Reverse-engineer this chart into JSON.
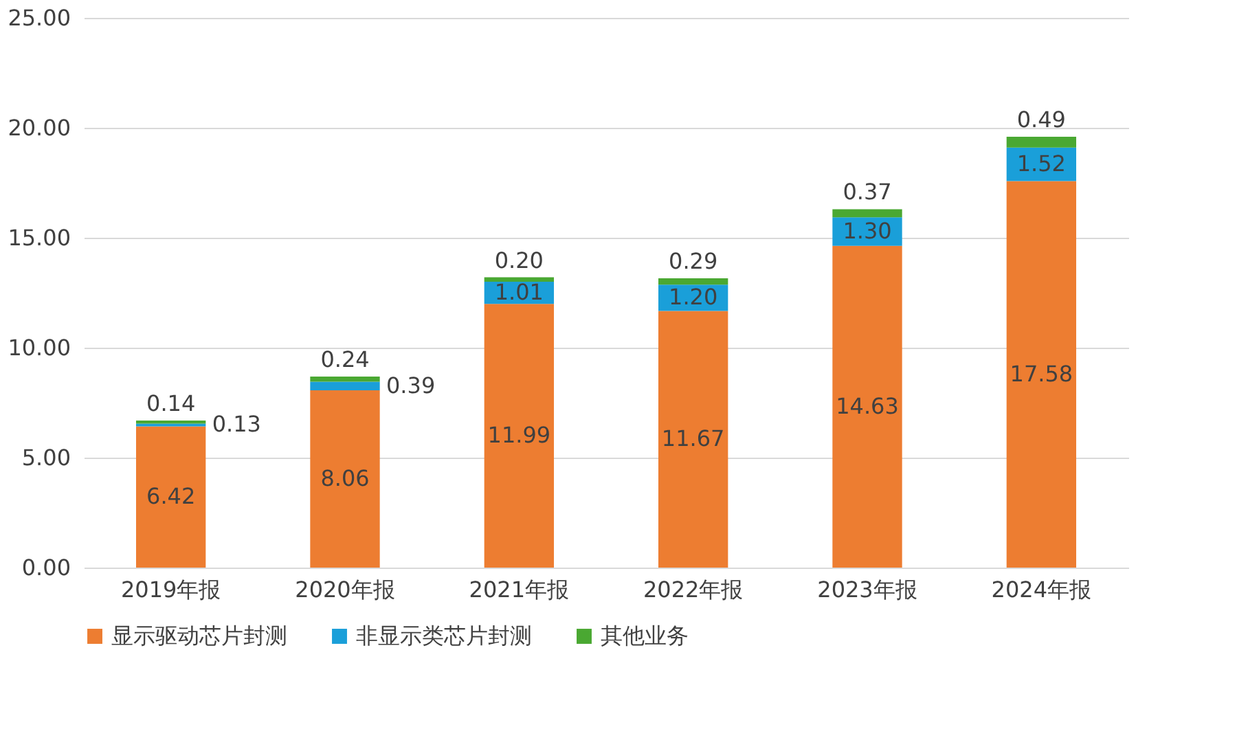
{
  "chart_data": {
    "type": "bar",
    "stacked": true,
    "categories": [
      "2019年报",
      "2020年报",
      "2021年报",
      "2022年报",
      "2023年报",
      "2024年报"
    ],
    "series": [
      {
        "name": "显示驱动芯片封测",
        "color": "#ed7d31",
        "values": [
          6.42,
          8.06,
          11.99,
          11.67,
          14.63,
          17.58
        ]
      },
      {
        "name": "非显示类芯片封测",
        "color": "#1a9fd9",
        "values": [
          0.13,
          0.39,
          1.01,
          1.2,
          1.3,
          1.52
        ]
      },
      {
        "name": "其他业务",
        "color": "#4aa832",
        "values": [
          0.14,
          0.24,
          0.2,
          0.29,
          0.37,
          0.49
        ]
      }
    ],
    "value_labels": [
      [
        "6.42",
        "8.06",
        "11.99",
        "11.67",
        "14.63",
        "17.58"
      ],
      [
        "0.13",
        "0.39",
        "1.01",
        "1.20",
        "1.30",
        "1.52"
      ],
      [
        "0.14",
        "0.24",
        "0.20",
        "0.29",
        "0.37",
        "0.49"
      ]
    ],
    "ylim": [
      0,
      25
    ],
    "yticks": [
      {
        "value": 0,
        "label": "0.00"
      },
      {
        "value": 5,
        "label": "5.00"
      },
      {
        "value": 10,
        "label": "10.00"
      },
      {
        "value": 15,
        "label": "15.00"
      },
      {
        "value": 20,
        "label": "20.00"
      },
      {
        "value": 25,
        "label": "25.00"
      }
    ],
    "grid": "y",
    "legend": "bottom"
  }
}
